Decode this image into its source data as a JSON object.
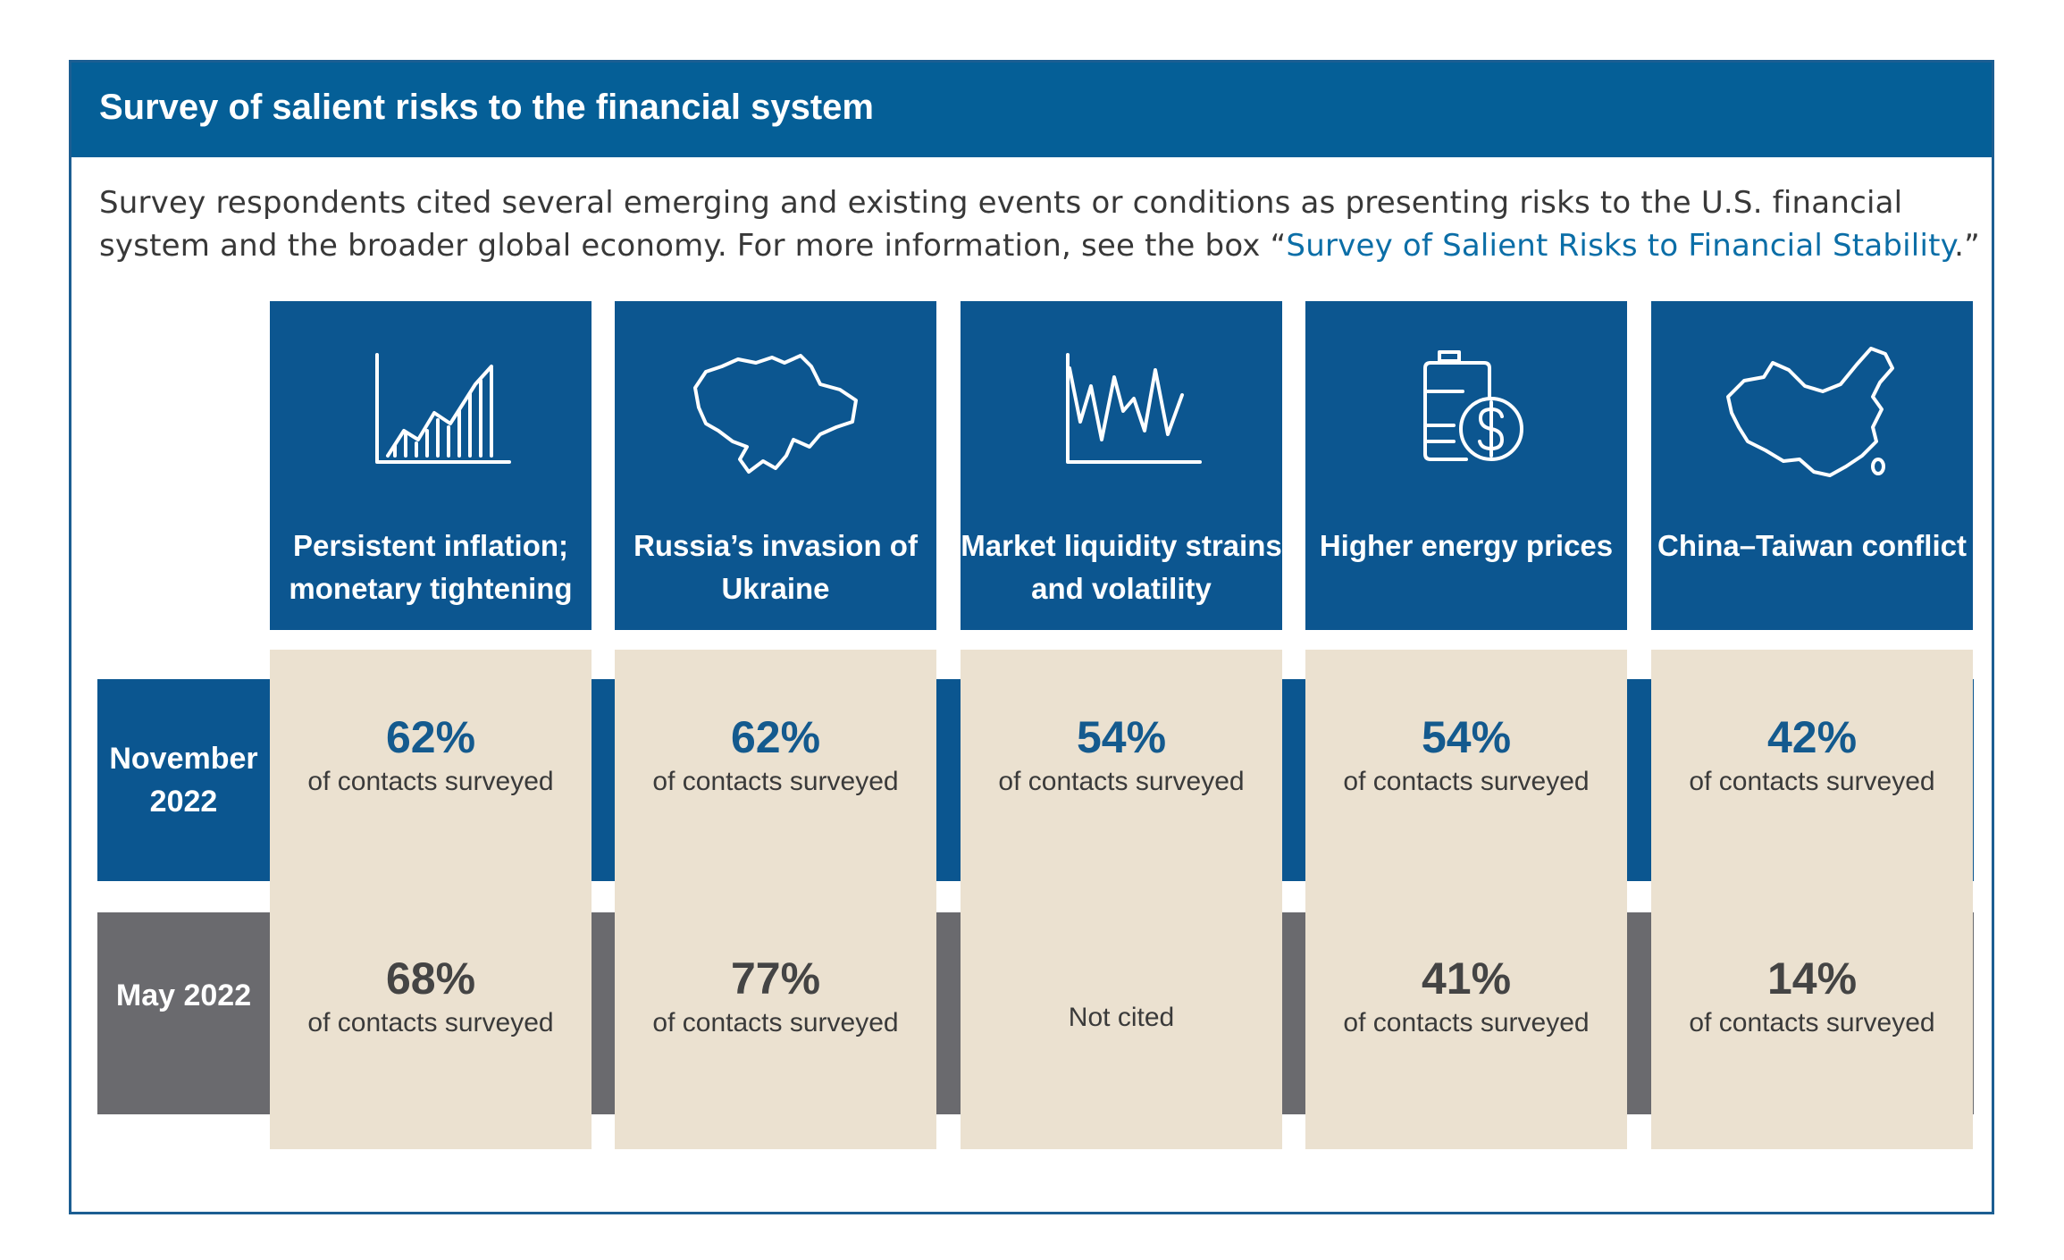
{
  "title": "Survey of salient risks to the financial system",
  "description": {
    "text": "Survey respondents cited several emerging and existing events or conditions as presenting risks to the U.S. financial system and the broader global economy. For more information, see the box “",
    "link": "Survey of Salient Risks to Financial Stability",
    "after": ".”"
  },
  "rows": {
    "nov": "November 2022",
    "may": "May 2022"
  },
  "columns": [
    {
      "label": "Persistent inflation; monetary tightening",
      "icon": "rising-bar-chart-icon",
      "nov": {
        "pct": "62%",
        "sub": "of contacts surveyed"
      },
      "may": {
        "pct": "68%",
        "sub": "of contacts surveyed"
      }
    },
    {
      "label": "Russia’s invasion of Ukraine",
      "icon": "ukraine-map-icon",
      "nov": {
        "pct": "62%",
        "sub": "of contacts surveyed"
      },
      "may": {
        "pct": "77%",
        "sub": "of contacts surveyed"
      }
    },
    {
      "label": "Market liquidity strains and volatility",
      "icon": "volatility-line-icon",
      "nov": {
        "pct": "54%",
        "sub": "of contacts surveyed"
      },
      "may": {
        "text": "Not cited"
      }
    },
    {
      "label": "Higher energy prices",
      "icon": "oil-barrel-dollar-icon",
      "nov": {
        "pct": "54%",
        "sub": "of contacts surveyed"
      },
      "may": {
        "pct": "41%",
        "sub": "of contacts surveyed"
      }
    },
    {
      "label": "China–Taiwan conflict",
      "icon": "china-map-icon",
      "nov": {
        "pct": "42%",
        "sub": "of contacts surveyed"
      },
      "may": {
        "pct": "14%",
        "sub": "of contacts surveyed"
      }
    }
  ],
  "colors": {
    "title_bar": "#055f97",
    "column_header": "#0c5690",
    "november_band": "#0b5690",
    "may_band": "#6a6a6e",
    "cell_background": "#ebe1d0"
  }
}
